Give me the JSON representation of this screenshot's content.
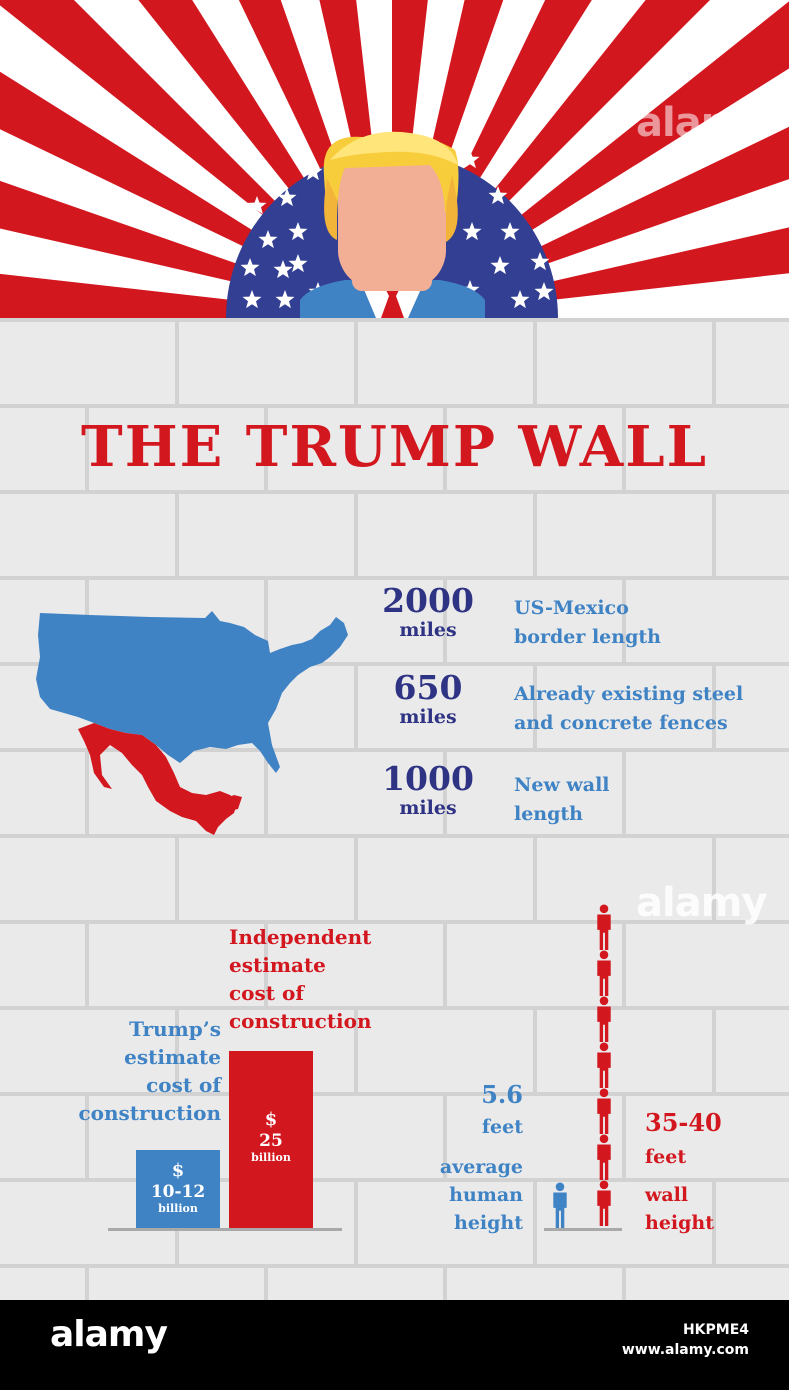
{
  "title": "THE TRUMP WALL",
  "colors": {
    "red": "#d3171f",
    "blue": "#3f83c5",
    "navy": "#2f3384",
    "wall": "#eaeaea",
    "mortar": "#d2d2d2"
  },
  "header": {
    "icons": [
      "sunburst-stripes",
      "star-field-semicircle",
      "trump-avatar-icon"
    ]
  },
  "stats": [
    {
      "number": "2000",
      "unit": "miles",
      "desc_line1": "US-Mexico",
      "desc_line2": "border length"
    },
    {
      "number": "650",
      "unit": "miles",
      "desc_line1": "Already existing steel",
      "desc_line2": "and concrete fences"
    },
    {
      "number": "1000",
      "unit": "miles",
      "desc_line1": "New wall",
      "desc_line2": "length"
    }
  ],
  "map": {
    "icons": [
      "usa-map-icon",
      "mexico-map-icon"
    ]
  },
  "cost": {
    "trump": {
      "label": [
        "Trump’s",
        "estimate",
        "cost of",
        "construction"
      ],
      "currency": "$",
      "amount": "10-12",
      "multiplier": "billion",
      "value": 11
    },
    "independent": {
      "label": [
        "Independent",
        "estimate",
        "cost of",
        "construction"
      ],
      "currency": "$",
      "amount": "25",
      "multiplier": "billion",
      "value": 25
    }
  },
  "heights": {
    "human": {
      "value_text": "5.6",
      "unit": "feet",
      "label": [
        "average",
        "human",
        "height"
      ],
      "feet": 5.6
    },
    "wall": {
      "value_text": "35-40",
      "unit": "feet",
      "label": [
        "wall",
        "height"
      ],
      "figures": 7
    }
  },
  "watermark": "alamy",
  "footer": {
    "logo": "alamy",
    "image_id": "HKPME4",
    "site": "www.alamy.com"
  }
}
